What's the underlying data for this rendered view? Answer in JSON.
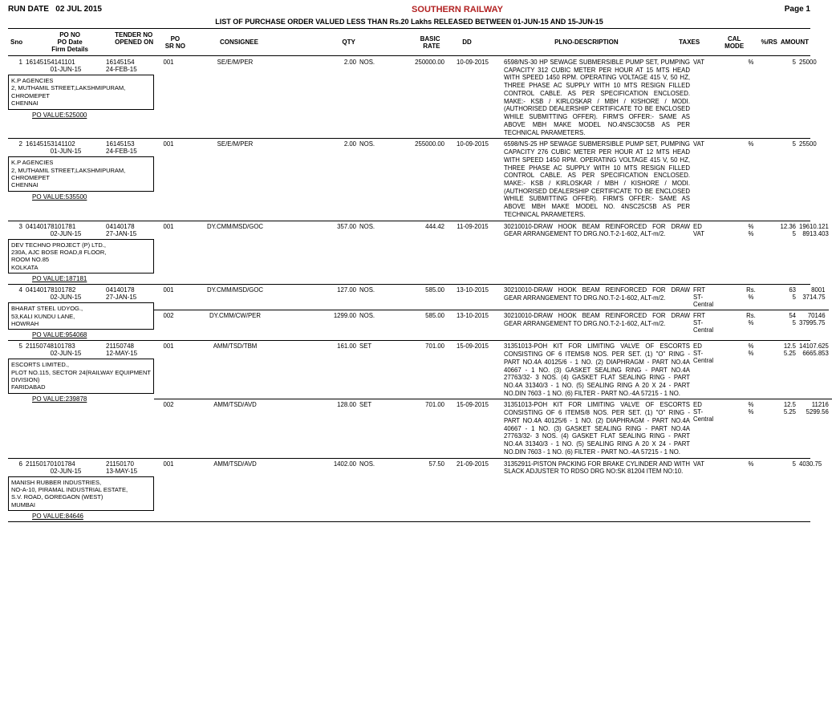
{
  "header": {
    "run_date_label": "RUN DATE",
    "run_date": "02 JUL 2015",
    "title": "SOUTHERN RAILWAY",
    "page_label": "Page 1",
    "subtitle": "LIST OF  PURCHASE ORDER VALUED LESS THAN Rs.20 Lakhs RELEASED BETWEEN 01-JUN-15 AND 15-JUN-15"
  },
  "columns": {
    "sno": "Sno",
    "po_no": "PO NO",
    "po_date": "PO Date",
    "firm": "Firm Details",
    "tender_no": "TENDER NO",
    "opened_on": "OPENED ON",
    "po_srno": "PO\nSR NO",
    "consignee": "CONSIGNEE",
    "qty": "QTY",
    "basic_rate": "BASIC\nRATE",
    "dd": "DD",
    "plno_desc": "PLNO-DESCRIPTION",
    "taxes": "TAXES",
    "cal_mode": "CAL\nMODE",
    "pct_rs": "%/RS",
    "amount": "AMOUNT"
  },
  "orders": [
    {
      "sno": "1",
      "po_no": "16145154141101",
      "po_date": "01-JUN-15",
      "tender_no": "16145154",
      "opened_on": "24-FEB-15",
      "firm": "K.P AGENCIES\n2, MUTHAMIL STREET,LAKSHMIPURAM,\nCHROMEPET\nCHENNAI",
      "po_value_label": "PO VALUE:525000",
      "items": [
        {
          "sr": "001",
          "consignee": "SE/E/M/PER",
          "qty": "2.00",
          "uom": "NOS.",
          "rate": "250000.00",
          "dd": "10-09-2015",
          "desc": "6598/NS-30 HP SEWAGE SUBMERSIBLE PUMP SET, PUMPING CAPACITY 312 CUBIC METER PER HOUR AT 15 MTS HEAD WITH SPEED 1450 RPM. OPERATING VOLTAGE 415 V, 50 HZ, THREE PHASE AC SUPPLY WITH 10 MTS RESIGN FILLED CONTROL CABLE. AS PER SPECIFICATION ENCLOSED. MAKE:- KSB / KIRLOSKAR / MBH / KISHORE / MODI. (AUTHORISED DEALERSHIP CERTIFICATE TO BE ENCLOSED WHILE SUBMITTING OFFER). FIRM'S OFFER:- SAME AS ABOVE MBH MAKE MODEL NO.4NSC30C5B AS PER TECHNICAL PARAMETERS.",
          "taxes": [
            {
              "tax": "VAT",
              "cal": "%",
              "rs": "5",
              "amount": "25000"
            }
          ]
        }
      ]
    },
    {
      "sno": "2",
      "po_no": "16145153141102",
      "po_date": "01-JUN-15",
      "tender_no": "16145153",
      "opened_on": "24-FEB-15",
      "firm": "K.P AGENCIES\n2, MUTHAMIL STREET,LAKSHMIPURAM,\nCHROMEPET\nCHENNAI",
      "po_value_label": "PO VALUE:535500",
      "items": [
        {
          "sr": "001",
          "consignee": "SE/E/M/PER",
          "qty": "2.00",
          "uom": "NOS.",
          "rate": "255000.00",
          "dd": "10-09-2015",
          "desc": "6598/NS-25 HP SEWAGE SUBMERSIBLE PUMP SET, PUMPING CAPACITY 276 CUBIC METER PER HOUR AT 12 MTS HEAD WITH SPEED 1450 RPM. OPERATING VOLTAGE 415 V, 50 HZ, THREE PHASE AC SUPPLY WITH 10 MTS RESIGN FILLED CONTROL CABLE. AS PER SPECIFICATION ENCLOSED. MAKE:- KSB / KIRLOSKAR / MBH / KISHORE / MODI. (AUTHORISED DEALERSHIP CERTIFICATE TO BE ENCLOSED WHILE SUBMITTING OFFER). FIRM'S OFFER:- SAME AS ABOVE MBH MAKE MODEL NO. 4NSC25C5B AS PER TECHNICAL PARAMETERS.",
          "taxes": [
            {
              "tax": "VAT",
              "cal": "%",
              "rs": "5",
              "amount": "25500"
            }
          ]
        }
      ]
    },
    {
      "sno": "3",
      "po_no": "04140178101781",
      "po_date": "02-JUN-15",
      "tender_no": "04140178",
      "opened_on": "27-JAN-15",
      "firm": "DEV TECHNO PROJECT (P) LTD.,\n230A, AJC BOSE ROAD,8 FLOOR,\nROOM NO.85\nKOLKATA",
      "po_value_label": "PO VALUE:187181",
      "items": [
        {
          "sr": "001",
          "consignee": "DY.CMM/MSD/GOC",
          "qty": "357.00",
          "uom": "NOS.",
          "rate": "444.42",
          "dd": "11-09-2015",
          "desc": "30210010-DRAW HOOK BEAM REINFORCED FOR DRAW GEAR ARRANGEMENT TO DRG.NO.T-2-1-602,                     ALT-m/2.",
          "taxes": [
            {
              "tax": "ED",
              "cal": "%",
              "rs": "12.36",
              "amount": "19610.121"
            },
            {
              "tax": "VAT",
              "cal": "%",
              "rs": "5",
              "amount": "8913.403"
            }
          ]
        }
      ]
    },
    {
      "sno": "4",
      "po_no": "04140178101782",
      "po_date": "02-JUN-15",
      "tender_no": "04140178",
      "opened_on": "27-JAN-15",
      "firm": "BHARAT STEEL UDYOG.,\n53,KALI KUNDU LANE,\n\nHOWRAH",
      "po_value_label": "PO VALUE:954068",
      "items": [
        {
          "sr": "001",
          "consignee": "DY.CMM/MSD/GOC",
          "qty": "127.00",
          "uom": "NOS.",
          "rate": "585.00",
          "dd": "13-10-2015",
          "desc": "30210010-DRAW HOOK BEAM REINFORCED FOR DRAW GEAR ARRANGEMENT TO DRG.NO.T-2-1-602,                     ALT-m/2.",
          "taxes": [
            {
              "tax": "FRT",
              "cal": "Rs.",
              "rs": "63",
              "amount": "8001"
            },
            {
              "tax": "ST-Central",
              "cal": "%",
              "rs": "5",
              "amount": "3714.75"
            }
          ]
        },
        {
          "sr": "002",
          "consignee": "DY.CMM/CW/PER",
          "qty": "1299.00",
          "uom": "NOS.",
          "rate": "585.00",
          "dd": "13-10-2015",
          "desc": "30210010-DRAW HOOK BEAM REINFORCED FOR DRAW GEAR ARRANGEMENT TO DRG.NO.T-2-1-602,                     ALT-m/2.",
          "taxes": [
            {
              "tax": "FRT",
              "cal": "Rs.",
              "rs": "54",
              "amount": "70146"
            },
            {
              "tax": "ST-Central",
              "cal": "%",
              "rs": "5",
              "amount": "37995.75"
            }
          ]
        }
      ]
    },
    {
      "sno": "5",
      "po_no": "21150748101783",
      "po_date": "02-JUN-15",
      "tender_no": "21150748",
      "opened_on": "12-MAY-15",
      "firm": "ESCORTS  LIMITED.,\nPLOT NO.115, SECTOR  24(RAILWAY EQUIPMENT DIVISION)\n\nFARIDABAD",
      "po_value_label": "PO VALUE:239878",
      "items": [
        {
          "sr": "001",
          "consignee": "AMM/TSD/TBM",
          "qty": "161.00",
          "uom": "SET",
          "rate": "701.00",
          "dd": "15-09-2015",
          "desc": "31351013-POH KIT FOR LIMITING VALVE OF ESCORTS CONSISTING OF 6 ITEMS/8 NOS. PER SET. (1) \"O\" RING - PART NO.4A 40125/6 - 1 NO.  (2) DIAPHRAGM - PART NO.4A 40667 - 1  NO. (3) GASKET SEALING RING - PART NO.4A 27763/32- 3  NOS.  (4) GASKET FLAT SEALING RING - PART NO.4A 31340/3 - 1 NO.  (5) SEALING RING A 20 X 24 - PART NO.DIN 7603 - 1 NO.  (6) FILTER - PART NO.-4A 57215 - 1  NO.",
          "taxes": [
            {
              "tax": "ED",
              "cal": "%",
              "rs": "12.5",
              "amount": "14107.625"
            },
            {
              "tax": "ST-Central",
              "cal": "%",
              "rs": "5.25",
              "amount": "6665.853"
            }
          ]
        },
        {
          "sr": "002",
          "consignee": "AMM/TSD/AVD",
          "qty": "128.00",
          "uom": "SET",
          "rate": "701.00",
          "dd": "15-09-2015",
          "desc": "31351013-POH KIT FOR LIMITING VALVE OF ESCORTS CONSISTING OF 6 ITEMS/8 NOS. PER SET. (1) \"O\" RING - PART NO.4A 40125/6 - 1 NO.  (2) DIAPHRAGM - PART NO.4A 40667 - 1  NO. (3) GASKET SEALING RING - PART NO.4A 27763/32- 3  NOS.  (4) GASKET FLAT SEALING RING - PART NO.4A 31340/3 - 1 NO.  (5) SEALING RING A 20 X 24 - PART NO.DIN 7603 - 1 NO.  (6) FILTER - PART NO.-4A 57215 - 1  NO.",
          "taxes": [
            {
              "tax": "ED",
              "cal": "%",
              "rs": "12.5",
              "amount": "11216"
            },
            {
              "tax": "ST-Central",
              "cal": "%",
              "rs": "5.25",
              "amount": "5299.56"
            }
          ]
        }
      ]
    },
    {
      "sno": "6",
      "po_no": "21150170101784",
      "po_date": "02-JUN-15",
      "tender_no": "21150170",
      "opened_on": "13-MAY-15",
      "firm": "MANISH RUBBER INDUSTRIES,\nNO-A-10, PIRAMAL INDUSTRIAL ESTATE,\nS.V. ROAD, GOREGAON (WEST)\nMUMBAI",
      "po_value_label": "PO VALUE:84646",
      "items": [
        {
          "sr": "001",
          "consignee": "AMM/TSD/AVD",
          "qty": "1402.00",
          "uom": "NOS.",
          "rate": "57.50",
          "dd": "21-09-2015",
          "desc": "31352911-PISTON PACKING  FOR BRAKE CYLINDER AND WITH SLACK ADJUSTER TO RDSO DRG NO:SK 81204 ITEM NO:10.",
          "taxes": [
            {
              "tax": "VAT",
              "cal": "%",
              "rs": "5",
              "amount": "4030.75"
            }
          ]
        }
      ]
    }
  ]
}
